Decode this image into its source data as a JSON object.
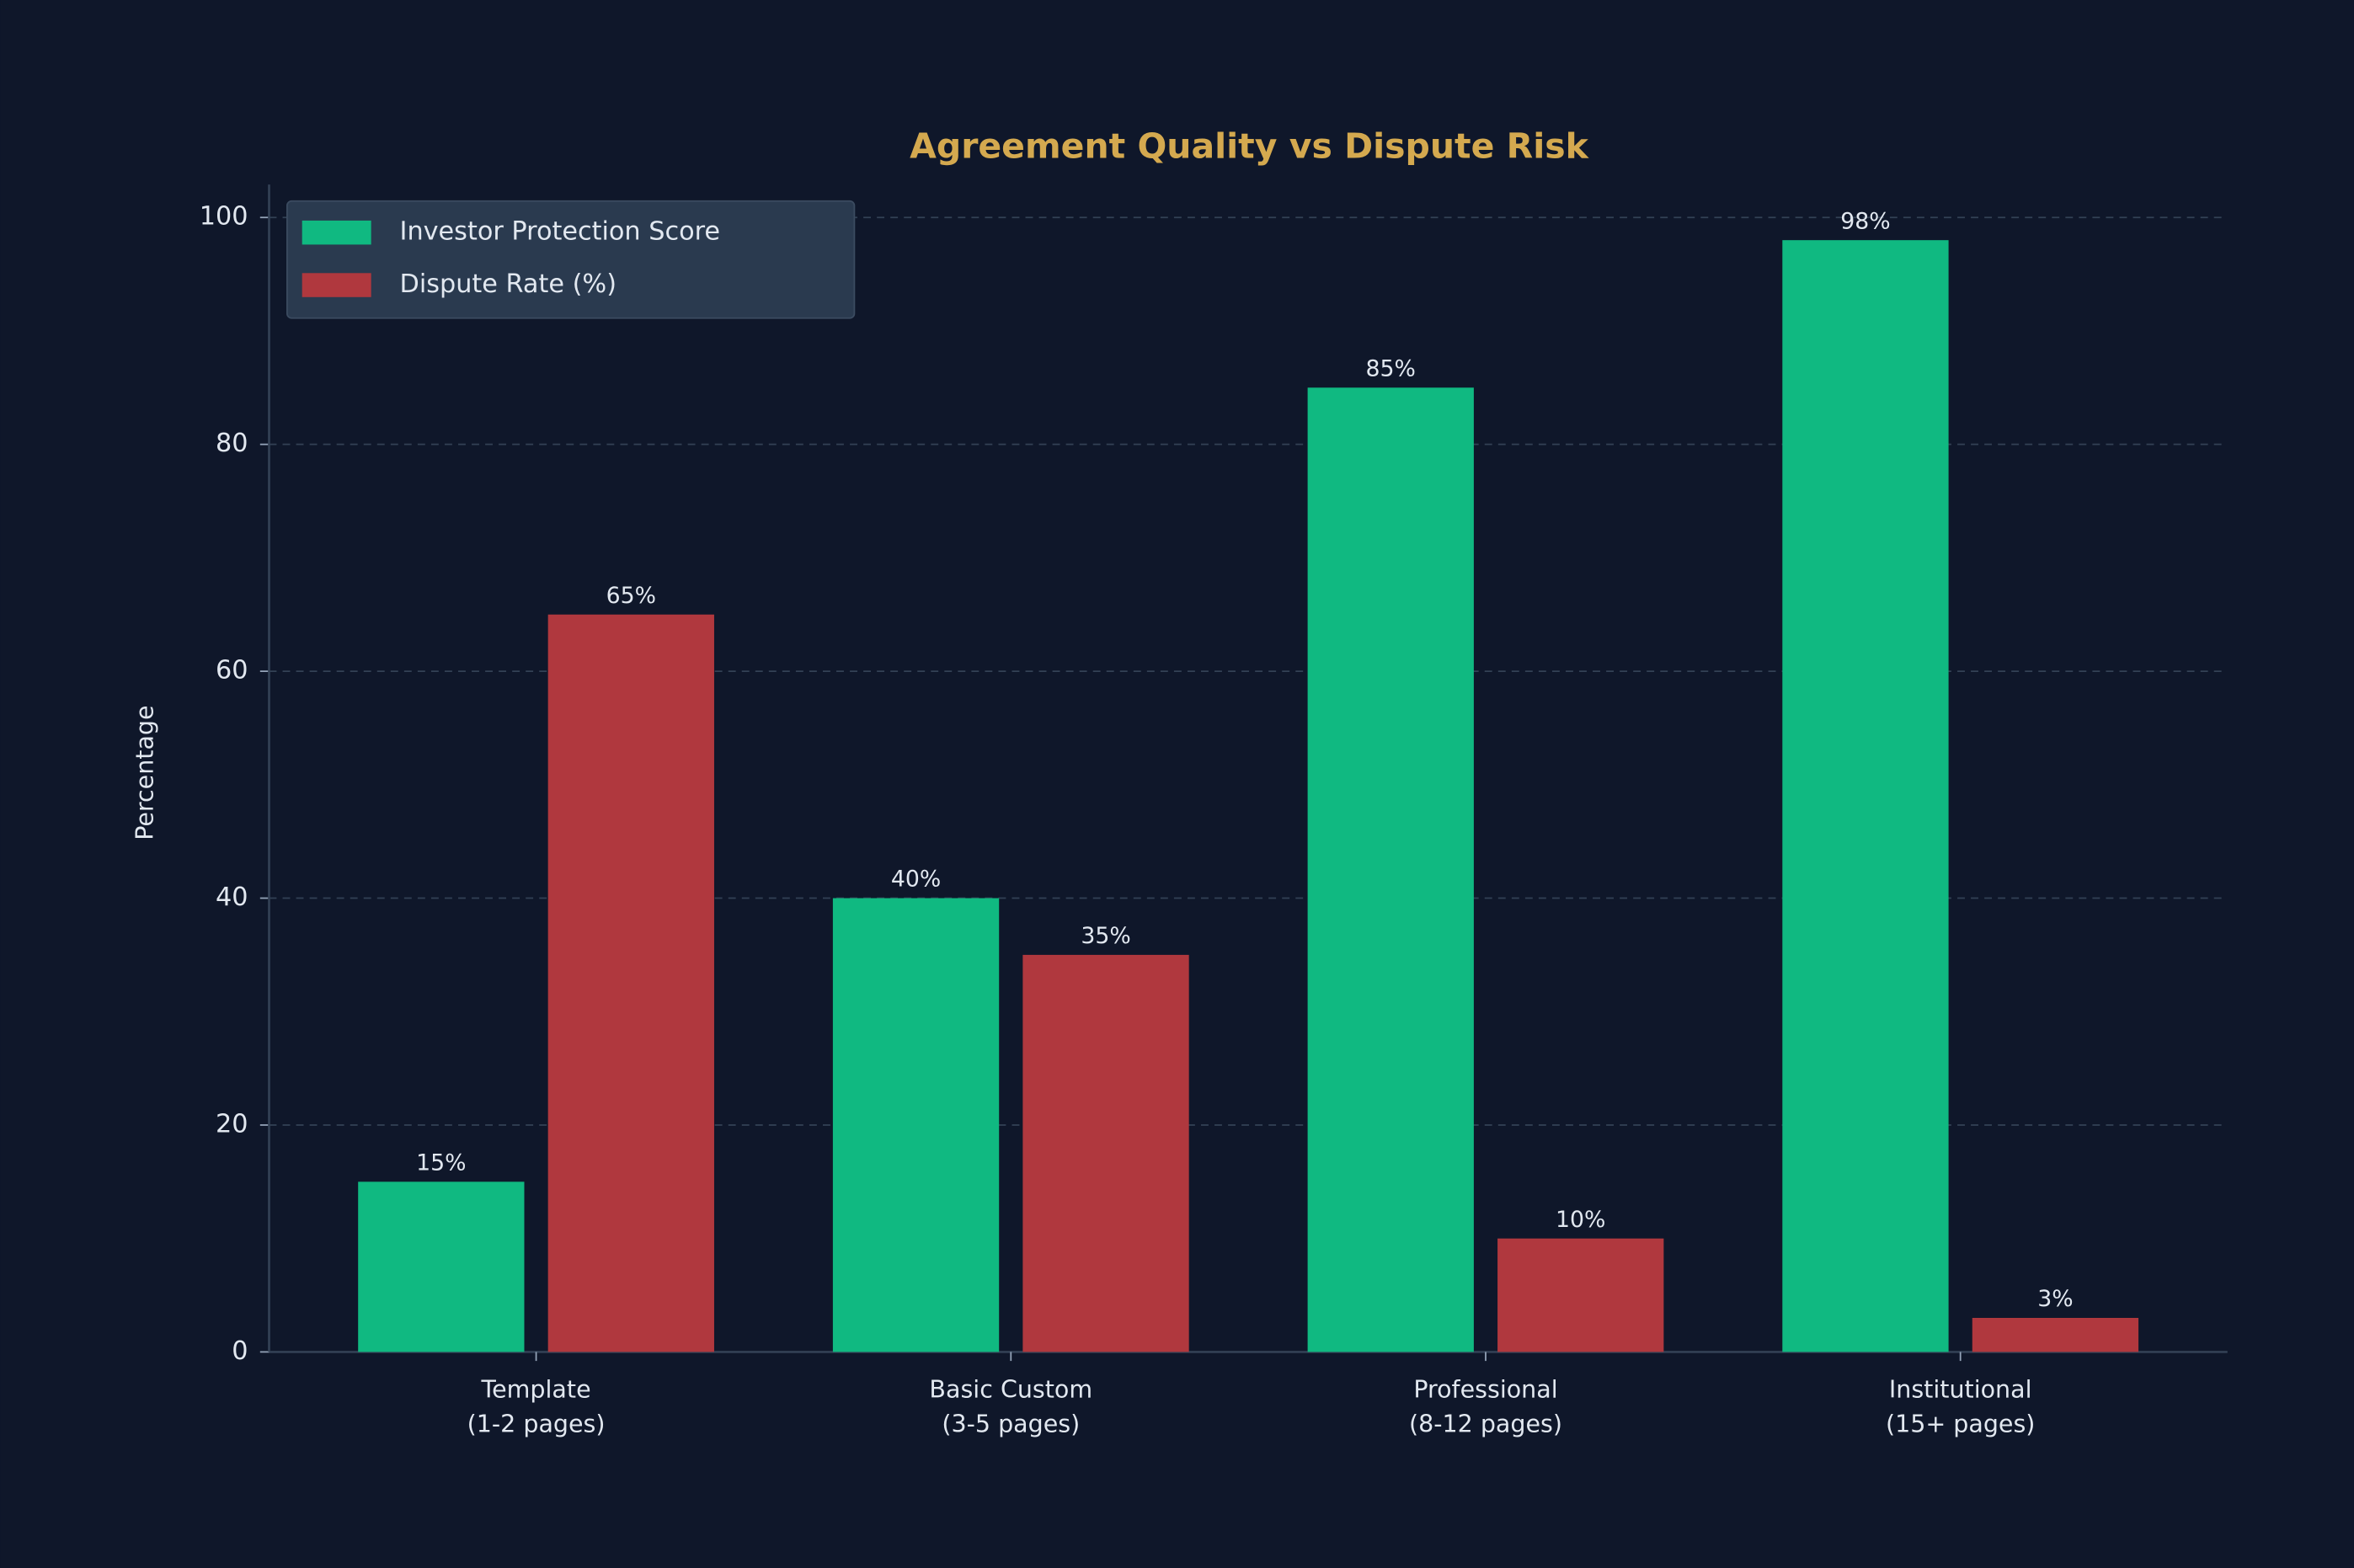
{
  "chart_data": {
    "type": "bar",
    "title": "Agreement Quality vs Dispute Risk",
    "y_label": "Percentage",
    "categories": [
      "Template\n(1-2 pages)",
      "Basic Custom\n(3-5 pages)",
      "Professional\n(8-12 pages)",
      "Institutional\n(15+ pages)"
    ],
    "series": [
      {
        "name": "Investor Protection Score",
        "color": "#10b981",
        "values": [
          15,
          40,
          85,
          98
        ],
        "value_labels": [
          "15%",
          "40%",
          "85%",
          "98%"
        ]
      },
      {
        "name": "Dispute Rate (%)",
        "color": "#b0383e",
        "values": [
          65,
          35,
          10,
          3
        ],
        "value_labels": [
          "65%",
          "35%",
          "10%",
          "3%"
        ]
      }
    ],
    "ylim": [
      0,
      102.9
    ],
    "yticks": [
      0,
      20,
      40,
      60,
      80,
      100
    ],
    "grid": true,
    "legend": "upper left"
  }
}
